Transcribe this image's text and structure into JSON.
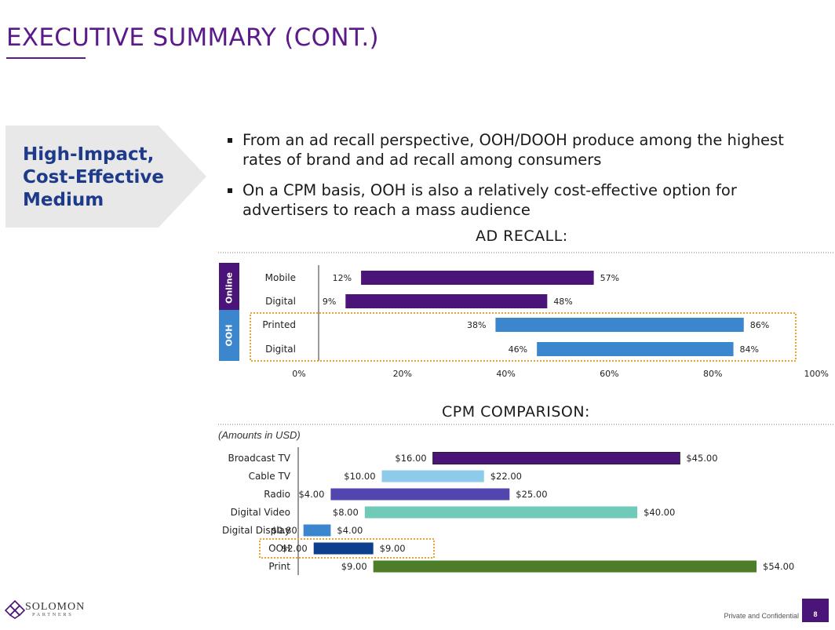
{
  "header": {
    "title": "EXECUTIVE SUMMARY (CONT.)"
  },
  "callout": {
    "text": "High-Impact, Cost-Effective Medium"
  },
  "bullets": [
    "From an ad recall perspective, OOH/DOOH produce among the highest rates of brand and ad recall among consumers",
    "On a CPM basis, OOH is also a relatively cost-effective option for advertisers to reach a mass audience"
  ],
  "chart_data": [
    {
      "type": "bar",
      "title": "AD RECALL:",
      "groups": [
        {
          "name": "Online",
          "color": "#4b1478"
        },
        {
          "name": "OOH",
          "color": "#3b86cc"
        }
      ],
      "categories": [
        "Mobile",
        "Digital",
        "Printed",
        "Digital"
      ],
      "category_groups": [
        "Online",
        "Online",
        "OOH",
        "OOH"
      ],
      "low_values": [
        12,
        9,
        38,
        46
      ],
      "high_values": [
        57,
        48,
        86,
        84
      ],
      "low_labels": [
        "12%",
        "9%",
        "38%",
        "46%"
      ],
      "high_labels": [
        "57%",
        "48%",
        "86%",
        "84%"
      ],
      "bar_colors": [
        "#4b1478",
        "#4b1478",
        "#3b86cc",
        "#3b86cc"
      ],
      "xlim": [
        0,
        100
      ],
      "x_ticks": [
        0,
        20,
        40,
        60,
        80,
        100
      ],
      "x_tick_labels": [
        "0%",
        "20%",
        "40%",
        "60%",
        "80%",
        "100%"
      ],
      "highlight_group": "OOH",
      "highlight_color": "#f0a030"
    },
    {
      "type": "bar",
      "title": "CPM COMPARISON:",
      "note": "(Amounts in USD)",
      "categories": [
        "Broadcast TV",
        "Cable TV",
        "Radio",
        "Digital Video",
        "Digital Display",
        "OOH",
        "Print"
      ],
      "low_values": [
        16,
        10,
        4,
        8,
        0.8,
        2,
        9
      ],
      "high_values": [
        45,
        22,
        25,
        40,
        4,
        9,
        54
      ],
      "low_labels": [
        "$16.00",
        "$10.00",
        "$4.00",
        "$8.00",
        "$0.80",
        "$2.00",
        "$9.00"
      ],
      "high_labels": [
        "$45.00",
        "$22.00",
        "$25.00",
        "$40.00",
        "$4.00",
        "$9.00",
        "$54.00"
      ],
      "bar_colors": [
        "#4b1478",
        "#8ecbea",
        "#5245b0",
        "#6fcab8",
        "#3b86cc",
        "#0e3f8c",
        "#4e7d2a"
      ],
      "xlim": [
        0,
        54
      ],
      "highlight_category": "OOH",
      "highlight_color": "#f0a030"
    }
  ],
  "footer": {
    "confidential": "Private and Confidential",
    "page": "8"
  },
  "logo": {
    "name": "SOLOMON",
    "sub": "PARTNERS"
  }
}
